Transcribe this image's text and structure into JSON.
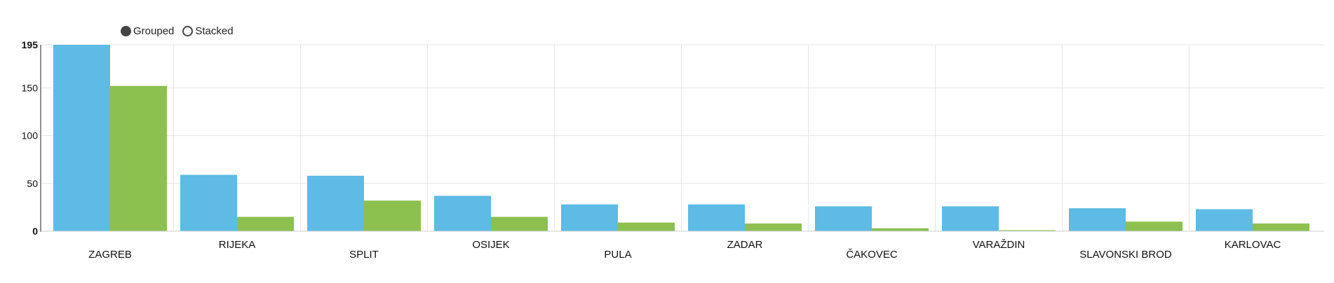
{
  "mode_toggle": {
    "options": [
      {
        "label": "Grouped",
        "selected": true
      },
      {
        "label": "Stacked",
        "selected": false
      }
    ]
  },
  "colors": {
    "series_1": "#5dbbe5",
    "series_2": "#8cc04f",
    "grid": "#e6e6e6",
    "axis": "#222222"
  },
  "chart_data": {
    "type": "bar",
    "layout": "grouped",
    "categories": [
      "ZAGREB",
      "RIJEKA",
      "SPLIT",
      "OSIJEK",
      "PULA",
      "ZADAR",
      "ČAKOVEC",
      "VARAŽDIN",
      "SLAVONSKI BROD",
      "KARLOVAC"
    ],
    "series": [
      {
        "values": [
          195,
          59,
          58,
          37,
          28,
          28,
          26,
          26,
          24,
          23
        ]
      },
      {
        "values": [
          152,
          15,
          32,
          15,
          9,
          8,
          3,
          1,
          10,
          8
        ]
      }
    ],
    "ylim": [
      0,
      195
    ],
    "yticks": [
      0,
      50,
      100,
      150,
      195
    ],
    "xlabel": "",
    "ylabel": "",
    "title": "",
    "grid": true
  }
}
